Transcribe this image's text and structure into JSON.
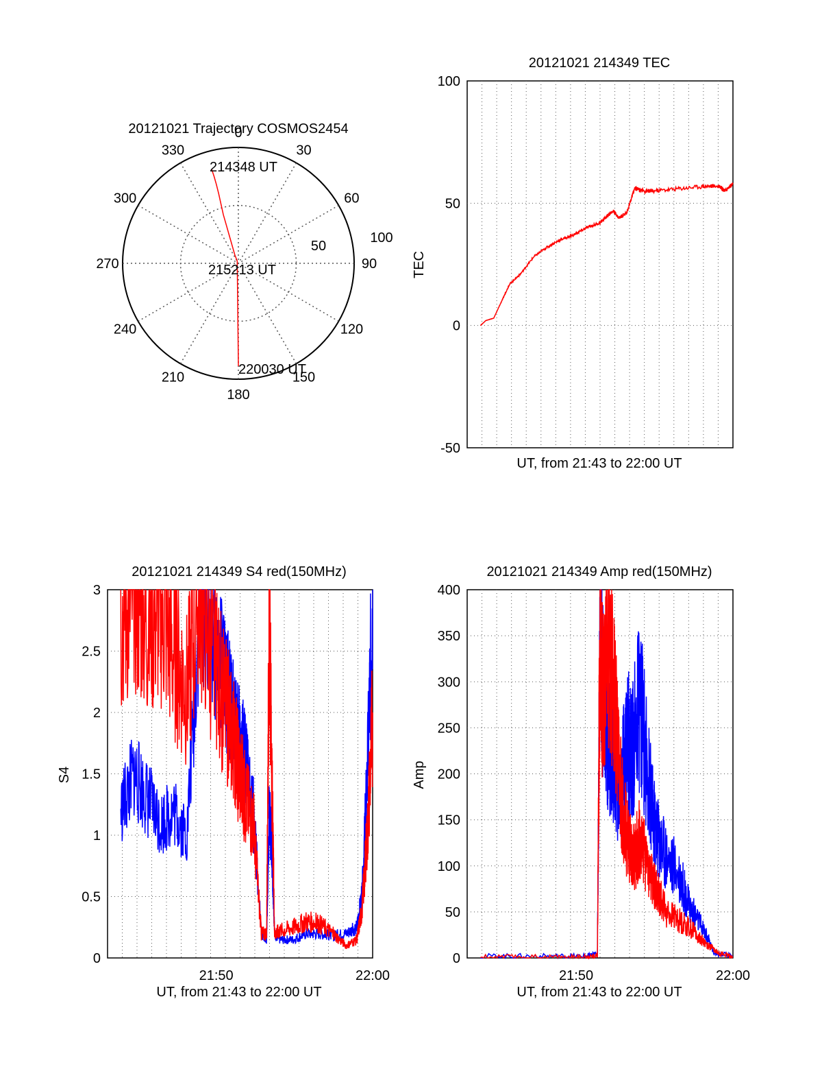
{
  "colors": {
    "red": "#ff0000",
    "blue": "#0000ff",
    "grid": "#555555",
    "axis": "#000000"
  },
  "chart_data": [
    {
      "id": "polar",
      "type": "scatter",
      "title": "20121021 Trajectory COSMOS2454",
      "angle_labels": [
        "0",
        "30",
        "60",
        "90",
        "120",
        "150",
        "180",
        "210",
        "240",
        "270",
        "300",
        "330"
      ],
      "radius_labels": [
        "50",
        "100"
      ],
      "rlim": [
        0,
        100
      ],
      "grid": true,
      "series": [
        {
          "color": "red",
          "points": [
            [
              -23,
              81
            ],
            [
              -21,
              75
            ],
            [
              -19,
              68
            ],
            [
              -17,
              60
            ],
            [
              -15,
              51
            ],
            [
              -13,
              42
            ],
            [
              -11,
              35
            ],
            [
              -9,
              28
            ],
            [
              -7,
              21
            ],
            [
              -5,
              14
            ],
            [
              -3,
              7
            ],
            [
              -1,
              2
            ]
          ]
        }
      ],
      "annotations": [
        "214348 UT",
        "215213 UT",
        "220030 UT"
      ]
    },
    {
      "id": "tec",
      "type": "line",
      "title": "20121021 214349 TEC",
      "xlabel": "UT, from 21:43 to 22:00 UT",
      "ylabel": "TEC",
      "ylim": [
        -50,
        100
      ],
      "yticks": [
        "-50",
        "0",
        "50",
        "100"
      ],
      "grid": true,
      "series": [
        {
          "color": "red",
          "x": [
            0.05,
            0.07,
            0.1,
            0.13,
            0.16,
            0.2,
            0.25,
            0.3,
            0.35,
            0.4,
            0.45,
            0.5,
            0.53,
            0.55,
            0.57,
            0.6,
            0.63,
            0.67,
            0.7,
            0.8,
            0.9,
            0.95,
            0.97,
            1.0
          ],
          "values": [
            0,
            2,
            3,
            10,
            17,
            21,
            28,
            32,
            35,
            37,
            40,
            42,
            45,
            47,
            44,
            46,
            56,
            55,
            55,
            56,
            57,
            57,
            55,
            58
          ]
        }
      ]
    },
    {
      "id": "s4",
      "type": "line",
      "title": "20121021 214349 S4 red(150MHz)",
      "xlabel": "UT, from 21:43 to 22:00 UT",
      "ylabel": "S4",
      "ylim": [
        0,
        3
      ],
      "yticks": [
        "0",
        "0.5",
        "1",
        "1.5",
        "2",
        "2.5",
        "3"
      ],
      "xticks": [
        "21:50",
        "22:00"
      ],
      "grid": true,
      "series": [
        {
          "color": "blue",
          "x": [
            0.05,
            0.1,
            0.15,
            0.2,
            0.25,
            0.3,
            0.35,
            0.4,
            0.45,
            0.48,
            0.5,
            0.52,
            0.55,
            0.58,
            0.6,
            0.61,
            0.62,
            0.63,
            0.65,
            0.7,
            0.75,
            0.8,
            0.85,
            0.9,
            0.94,
            0.96,
            0.98,
            1.0
          ],
          "values": [
            1.2,
            1.5,
            1.3,
            1.1,
            1.2,
            1.0,
            3.0,
            2.6,
            2.2,
            1.9,
            1.8,
            1.6,
            1.2,
            0.2,
            0.15,
            1.2,
            0.9,
            0.2,
            0.15,
            0.15,
            0.2,
            0.2,
            0.18,
            0.2,
            0.25,
            0.5,
            1.5,
            3.0
          ]
        },
        {
          "color": "red",
          "x": [
            0.05,
            0.1,
            0.15,
            0.2,
            0.25,
            0.3,
            0.35,
            0.4,
            0.45,
            0.48,
            0.5,
            0.52,
            0.55,
            0.58,
            0.6,
            0.61,
            0.62,
            0.63,
            0.65,
            0.7,
            0.75,
            0.8,
            0.85,
            0.9,
            0.94,
            0.96,
            0.98,
            1.0
          ],
          "values": [
            2.8,
            3.0,
            2.7,
            2.9,
            2.5,
            2.2,
            3.0,
            2.4,
            2.0,
            1.7,
            1.5,
            1.3,
            1.1,
            0.2,
            0.2,
            2.8,
            1.5,
            0.2,
            0.22,
            0.25,
            0.3,
            0.28,
            0.2,
            0.1,
            0.15,
            0.4,
            1.0,
            2.0
          ]
        }
      ]
    },
    {
      "id": "amp",
      "type": "line",
      "title": "20121021 214349 Amp red(150MHz)",
      "xlabel": "UT, from 21:43 to 22:00 UT",
      "ylabel": "Amp",
      "ylim": [
        0,
        400
      ],
      "yticks": [
        "0",
        "50",
        "100",
        "150",
        "200",
        "250",
        "300",
        "350",
        "400"
      ],
      "xticks": [
        "21:50",
        "22:00"
      ],
      "grid": true,
      "series": [
        {
          "color": "blue",
          "x": [
            0.05,
            0.3,
            0.45,
            0.49,
            0.5,
            0.51,
            0.52,
            0.54,
            0.56,
            0.58,
            0.6,
            0.62,
            0.65,
            0.68,
            0.7,
            0.72,
            0.75,
            0.8,
            0.83,
            0.86,
            0.9,
            0.93,
            1.0
          ],
          "values": [
            2,
            2,
            2,
            5,
            380,
            300,
            250,
            230,
            200,
            180,
            240,
            220,
            280,
            200,
            150,
            130,
            110,
            90,
            60,
            45,
            25,
            5,
            2
          ]
        },
        {
          "color": "red",
          "x": [
            0.05,
            0.3,
            0.45,
            0.49,
            0.5,
            0.51,
            0.53,
            0.55,
            0.57,
            0.59,
            0.61,
            0.63,
            0.65,
            0.68,
            0.7,
            0.72,
            0.75,
            0.8,
            0.85,
            0.9,
            0.95,
            1.0
          ],
          "values": [
            1,
            1,
            1,
            3,
            370,
            280,
            350,
            300,
            200,
            150,
            120,
            110,
            130,
            100,
            80,
            70,
            50,
            40,
            30,
            15,
            5,
            1
          ]
        }
      ]
    }
  ]
}
